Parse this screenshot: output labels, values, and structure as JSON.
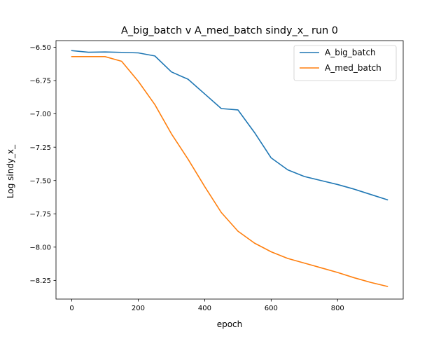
{
  "chart_data": {
    "type": "line",
    "title": "A_big_batch v A_med_batch sindy_x_ run 0",
    "xlabel": "epoch",
    "ylabel": "Log sindy_x_",
    "xlim": [
      -47.5,
      997.5
    ],
    "ylim": [
      -8.39,
      -6.45
    ],
    "x_ticks": [
      0,
      200,
      400,
      600,
      800
    ],
    "x_tick_labels": [
      "0",
      "200",
      "400",
      "600",
      "800"
    ],
    "y_ticks": [
      -6.5,
      -6.75,
      -7.0,
      -7.25,
      -7.5,
      -7.75,
      -8.0,
      -8.25
    ],
    "y_tick_labels": [
      "−6.50",
      "−6.75",
      "−7.00",
      "−7.25",
      "−7.50",
      "−7.75",
      "−8.00",
      "−8.25"
    ],
    "grid": false,
    "legend_position": "top-right",
    "x": [
      0,
      50,
      100,
      150,
      200,
      250,
      300,
      350,
      400,
      450,
      500,
      550,
      600,
      650,
      700,
      750,
      800,
      850,
      900,
      950
    ],
    "series": [
      {
        "name": "A_big_batch",
        "color": "#1f77b4",
        "values": [
          -6.525,
          -6.537,
          -6.535,
          -6.538,
          -6.542,
          -6.565,
          -6.685,
          -6.74,
          -6.85,
          -6.96,
          -6.97,
          -7.14,
          -7.33,
          -7.42,
          -7.47,
          -7.5,
          -7.53,
          -7.565,
          -7.605,
          -7.645
        ]
      },
      {
        "name": "A_med_batch",
        "color": "#ff7f0e",
        "values": [
          -6.57,
          -6.57,
          -6.57,
          -6.605,
          -6.755,
          -6.93,
          -7.15,
          -7.34,
          -7.545,
          -7.74,
          -7.88,
          -7.97,
          -8.035,
          -8.085,
          -8.12,
          -8.155,
          -8.19,
          -8.23,
          -8.265,
          -8.295
        ]
      }
    ]
  }
}
